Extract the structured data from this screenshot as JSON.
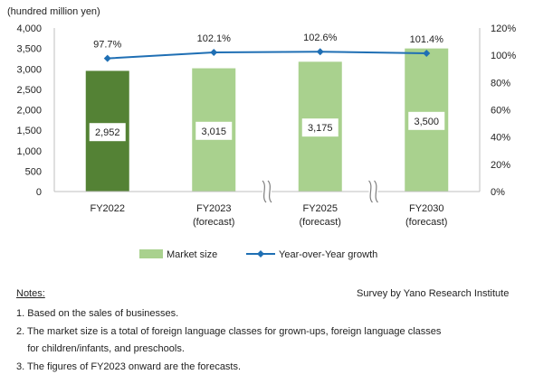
{
  "chart_data": {
    "type": "bar",
    "unit_label": "(hundred million yen)",
    "categories": [
      {
        "line1": "FY2022",
        "line2": ""
      },
      {
        "line1": "FY2023",
        "line2": "(forecast)"
      },
      {
        "line1": "FY2025",
        "line2": "(forecast)"
      },
      {
        "line1": "FY2030",
        "line2": "(forecast)"
      }
    ],
    "series": [
      {
        "name": "Market size",
        "axis": "left",
        "values": [
          2952,
          3015,
          3175,
          3500
        ],
        "value_labels": [
          "2,952",
          "3,015",
          "3,175",
          "3,500"
        ],
        "colors": [
          "#548235",
          "#a9d18e",
          "#a9d18e",
          "#a9d18e"
        ]
      },
      {
        "name": "Year-over-Year growth",
        "axis": "right",
        "type": "line",
        "values": [
          97.7,
          102.1,
          102.6,
          101.4
        ],
        "value_labels": [
          "97.7%",
          "102.1%",
          "102.6%",
          "101.4%"
        ],
        "color": "#1f6fb4"
      }
    ],
    "ylim_left": [
      0,
      4000
    ],
    "yticks_left": [
      "0",
      "500",
      "1,000",
      "1,500",
      "2,000",
      "2,500",
      "3,000",
      "3,500",
      "4,000"
    ],
    "ylim_right": [
      0,
      120
    ],
    "yticks_right": [
      "0%",
      "20%",
      "40%",
      "60%",
      "80%",
      "100%",
      "120%"
    ],
    "legend_position": "bottom",
    "grid": false,
    "axis_break_after_categories": [
      1,
      2
    ]
  },
  "source": "Survey by Yano Research Institute",
  "notes": {
    "heading": "Notes:",
    "items": [
      "1. Based on the sales of businesses.",
      "2. The market size is a total of foreign language classes for grown-ups, foreign language classes",
      "    for children/infants, and preschools.",
      "3. The figures of FY2023 onward are the forecasts."
    ]
  }
}
